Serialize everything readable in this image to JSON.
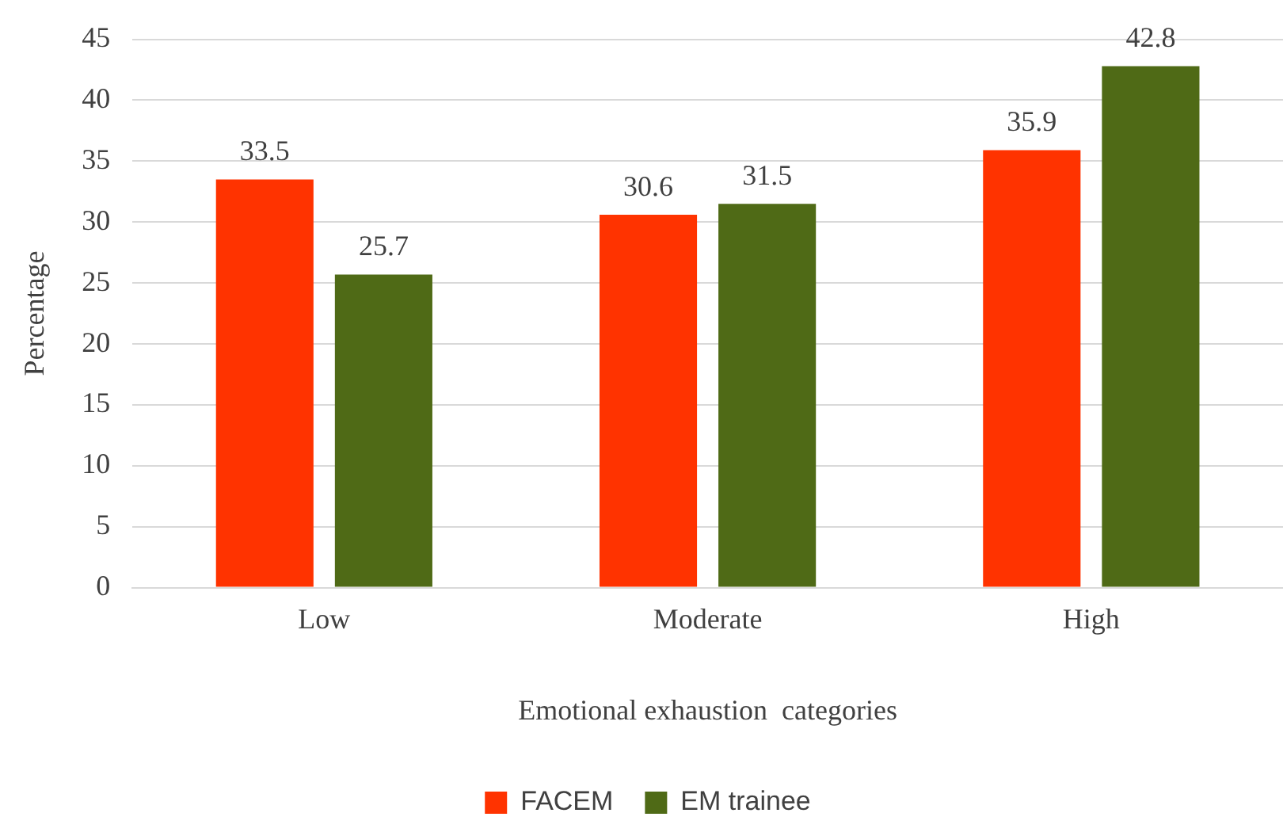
{
  "chart_data": {
    "type": "bar",
    "xlabel": "Emotional exhaustion  categories",
    "ylabel": "Percentage",
    "categories": [
      "Low",
      "Moderate",
      "High"
    ],
    "series": [
      {
        "name": "FACEM",
        "color": "#ff3300",
        "values": [
          33.5,
          30.6,
          35.9
        ]
      },
      {
        "name": "EM trainee",
        "color": "#4f6a16",
        "values": [
          25.7,
          31.5,
          42.8
        ]
      }
    ],
    "ylim": [
      0,
      45
    ],
    "yticks": [
      0,
      5,
      10,
      15,
      20,
      25,
      30,
      35,
      40,
      45
    ],
    "grid": "y",
    "legend": "bottom",
    "data_labels": true
  }
}
